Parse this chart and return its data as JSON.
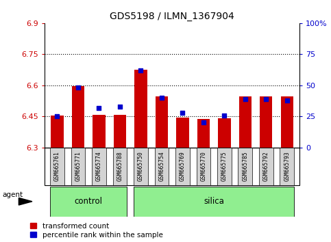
{
  "title": "GDS5198 / ILMN_1367904",
  "samples": [
    "GSM665761",
    "GSM665771",
    "GSM665774",
    "GSM665788",
    "GSM665750",
    "GSM665754",
    "GSM665769",
    "GSM665770",
    "GSM665775",
    "GSM665785",
    "GSM665792",
    "GSM665793"
  ],
  "control_count": 4,
  "silica_count": 8,
  "transformed_count": [
    6.453,
    6.597,
    6.458,
    6.459,
    6.674,
    6.548,
    6.446,
    6.438,
    6.44,
    6.548,
    6.548,
    6.548
  ],
  "percentile_rank": [
    25,
    48,
    32,
    33,
    62,
    40,
    28,
    20,
    26,
    39,
    39,
    38
  ],
  "ymin": 6.3,
  "ymax": 6.9,
  "yticks": [
    6.3,
    6.45,
    6.6,
    6.75,
    6.9
  ],
  "ytick_labels": [
    "6.3",
    "6.45",
    "6.6",
    "6.75",
    "6.9"
  ],
  "y2ticks": [
    0,
    25,
    50,
    75,
    100
  ],
  "y2tick_labels": [
    "0",
    "25",
    "50",
    "75",
    "100%"
  ],
  "grid_lines": [
    6.45,
    6.6,
    6.75
  ],
  "bar_color": "#cc0000",
  "dot_color": "#0000cc",
  "left_tick_color": "#cc0000",
  "right_tick_color": "#0000cc",
  "group_color": "#90ee90",
  "label_box_color": "#d3d3d3",
  "legend_items": [
    {
      "color": "#cc0000",
      "label": "transformed count"
    },
    {
      "color": "#0000cc",
      "label": "percentile rank within the sample"
    }
  ],
  "agent_label": "agent",
  "control_label": "control",
  "silica_label": "silica"
}
